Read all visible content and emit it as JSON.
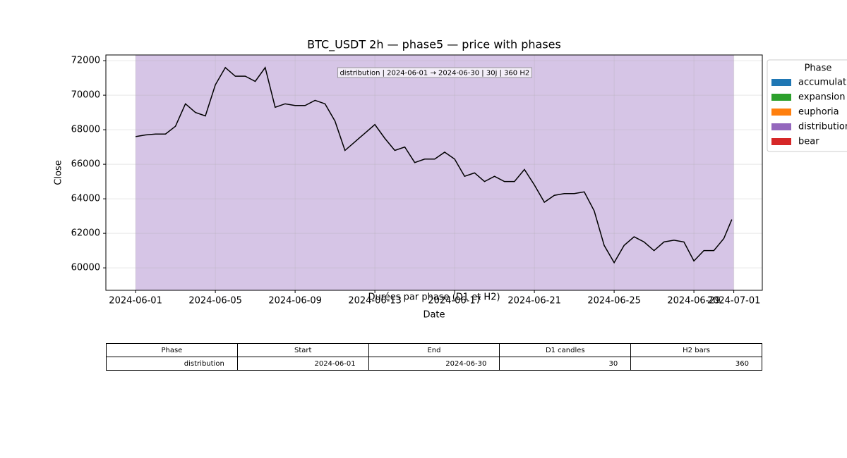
{
  "chart_data": {
    "type": "line",
    "title": "BTC_USDT 2h — phase5 — price with phases",
    "x_label": "Date",
    "y_label": "Close",
    "xlim": [
      -1.49,
      31.43
    ],
    "ylim": [
      58700,
      72330
    ],
    "xticks": [
      {
        "value": 0,
        "label": "2024-06-01"
      },
      {
        "value": 4,
        "label": "2024-06-05"
      },
      {
        "value": 8,
        "label": "2024-06-09"
      },
      {
        "value": 12,
        "label": "2024-06-13"
      },
      {
        "value": 16,
        "label": "2024-06-17"
      },
      {
        "value": 20,
        "label": "2024-06-21"
      },
      {
        "value": 24,
        "label": "2024-06-25"
      },
      {
        "value": 28,
        "label": "2024-06-29"
      },
      {
        "value": 30,
        "label": "2024-07-01"
      }
    ],
    "yticks": [
      60000,
      62000,
      64000,
      66000,
      68000,
      70000,
      72000
    ],
    "grid": true,
    "phases": [
      {
        "name": "distribution",
        "color": "#9467bd",
        "start": 0,
        "end": 30,
        "label": "distribution | 2024-06-01 → 2024-06-30 | 30j | 360 H2"
      }
    ],
    "series": [
      {
        "name": "Close",
        "color": "#000000",
        "x": [
          0,
          0.5,
          1,
          1.5,
          2,
          2.5,
          3,
          3.5,
          4,
          4.5,
          5,
          5.5,
          6,
          6.5,
          7,
          7.5,
          8,
          8.5,
          9,
          9.5,
          10,
          10.5,
          11,
          11.5,
          12,
          12.5,
          13,
          13.5,
          14,
          14.5,
          15,
          15.5,
          16,
          16.5,
          17,
          17.5,
          18,
          18.5,
          19,
          19.5,
          20,
          20.5,
          21,
          21.5,
          22,
          22.5,
          23,
          23.5,
          24,
          24.5,
          25,
          25.5,
          26,
          26.5,
          27,
          27.5,
          28,
          28.5,
          29,
          29.5,
          29.9
        ],
        "values": [
          67600,
          67700,
          67750,
          67750,
          68200,
          69500,
          69000,
          68800,
          70600,
          71600,
          71100,
          71100,
          70800,
          71600,
          69300,
          69500,
          69400,
          69400,
          69700,
          69500,
          68500,
          66800,
          67300,
          67800,
          68300,
          67500,
          66800,
          67000,
          66100,
          66300,
          66300,
          66700,
          66300,
          65300,
          65500,
          65000,
          65300,
          65000,
          65000,
          65700,
          64800,
          63800,
          64200,
          64300,
          64300,
          64400,
          63300,
          61300,
          60300,
          61300,
          61800,
          61500,
          61000,
          61500,
          61600,
          61500,
          60400,
          61000,
          61000,
          61700,
          62800
        ]
      }
    ],
    "legend": {
      "title": "Phase",
      "position": "outside right",
      "items": [
        {
          "name": "accumulation",
          "color": "#1f77b4"
        },
        {
          "name": "expansion",
          "color": "#2ca02c"
        },
        {
          "name": "euphoria",
          "color": "#ff7f0e"
        },
        {
          "name": "distribution",
          "color": "#9467bd"
        },
        {
          "name": "bear",
          "color": "#d62728"
        }
      ]
    }
  },
  "table": {
    "title": "Durées par phase (D1 et H2)",
    "columns": [
      "Phase",
      "Start",
      "End",
      "D1 candles",
      "H2 bars"
    ],
    "rows": [
      [
        "distribution",
        "2024-06-01",
        "2024-06-30",
        30,
        360
      ]
    ]
  }
}
